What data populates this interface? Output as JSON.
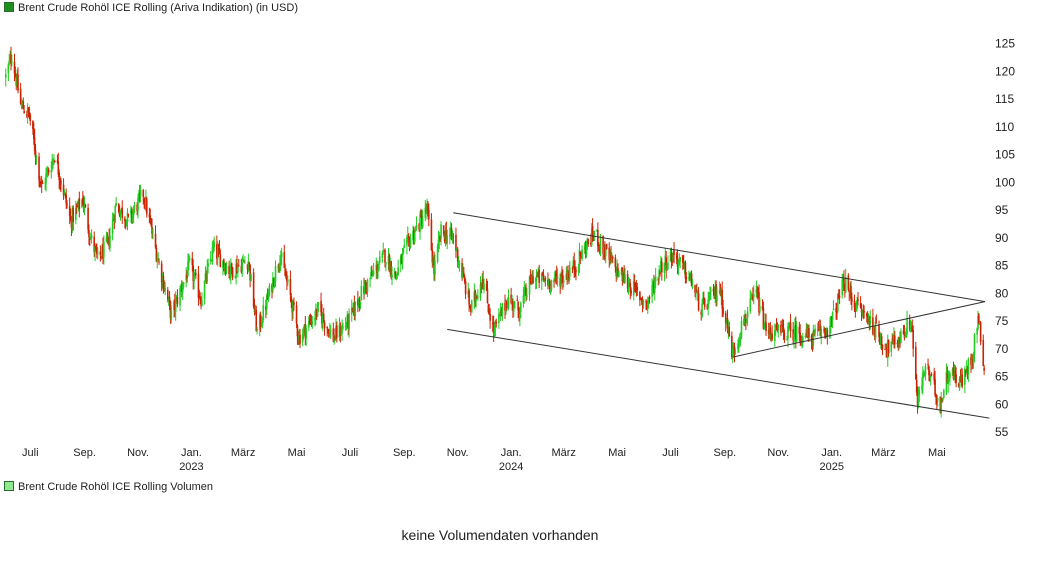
{
  "legend": {
    "price_label": "Brent Crude Rohöl ICE Rolling (Ariva Indikation) (in USD)",
    "volume_label": "Brent Crude Rohöl ICE Rolling Volumen"
  },
  "no_volume_text": "keine Volumendaten vorhanden",
  "colors": {
    "up": "#22cc22",
    "down": "#cc2200",
    "trendline": "#333333",
    "price_legend": "#1f8f1f",
    "volume_legend": "#8ee88e"
  },
  "chart_data": {
    "type": "candlestick",
    "title": "Brent Crude Rohöl ICE Rolling (Ariva Indikation) (in USD)",
    "ylim": [
      53,
      127
    ],
    "y_ticks": [
      55,
      60,
      65,
      70,
      75,
      80,
      85,
      90,
      95,
      100,
      105,
      110,
      115,
      120,
      125
    ],
    "x_range": [
      "2022-06-01",
      "2025-06-25"
    ],
    "x_ticks": [
      {
        "date": "2022-07-01",
        "label": "Juli",
        "year": ""
      },
      {
        "date": "2022-09-01",
        "label": "Sep.",
        "year": ""
      },
      {
        "date": "2022-11-01",
        "label": "Nov.",
        "year": ""
      },
      {
        "date": "2023-01-01",
        "label": "Jan.",
        "year": "2023"
      },
      {
        "date": "2023-03-01",
        "label": "März",
        "year": ""
      },
      {
        "date": "2023-05-01",
        "label": "Mai",
        "year": ""
      },
      {
        "date": "2023-07-01",
        "label": "Juli",
        "year": ""
      },
      {
        "date": "2023-09-01",
        "label": "Sep.",
        "year": ""
      },
      {
        "date": "2023-11-01",
        "label": "Nov.",
        "year": ""
      },
      {
        "date": "2024-01-01",
        "label": "Jan.",
        "year": "2024"
      },
      {
        "date": "2024-03-01",
        "label": "März",
        "year": ""
      },
      {
        "date": "2024-05-01",
        "label": "Mai",
        "year": ""
      },
      {
        "date": "2024-07-01",
        "label": "Juli",
        "year": ""
      },
      {
        "date": "2024-09-01",
        "label": "Sep.",
        "year": ""
      },
      {
        "date": "2024-11-01",
        "label": "Nov.",
        "year": ""
      },
      {
        "date": "2025-01-01",
        "label": "Jan.",
        "year": "2025"
      },
      {
        "date": "2025-03-01",
        "label": "März",
        "year": ""
      },
      {
        "date": "2025-05-01",
        "label": "Mai",
        "year": ""
      }
    ],
    "price_path": [
      [
        "2022-06-03",
        119
      ],
      [
        "2022-06-10",
        123
      ],
      [
        "2022-06-20",
        114
      ],
      [
        "2022-06-30",
        112
      ],
      [
        "2022-07-14",
        99
      ],
      [
        "2022-07-29",
        105
      ],
      [
        "2022-08-16",
        93
      ],
      [
        "2022-08-30",
        97
      ],
      [
        "2022-09-08",
        90
      ],
      [
        "2022-09-16",
        86
      ],
      [
        "2022-09-28",
        89
      ],
      [
        "2022-10-07",
        96
      ],
      [
        "2022-10-21",
        93
      ],
      [
        "2022-11-07",
        98
      ],
      [
        "2022-11-21",
        88
      ],
      [
        "2022-12-09",
        76
      ],
      [
        "2022-12-30",
        85
      ],
      [
        "2023-01-12",
        79
      ],
      [
        "2023-01-26",
        88
      ],
      [
        "2023-02-14",
        84
      ],
      [
        "2023-03-07",
        86
      ],
      [
        "2023-03-17",
        73
      ],
      [
        "2023-03-31",
        80
      ],
      [
        "2023-04-12",
        87
      ],
      [
        "2023-04-26",
        78
      ],
      [
        "2023-05-04",
        72
      ],
      [
        "2023-05-26",
        77
      ],
      [
        "2023-06-12",
        72
      ],
      [
        "2023-06-30",
        75
      ],
      [
        "2023-07-14",
        80
      ],
      [
        "2023-08-10",
        87
      ],
      [
        "2023-08-22",
        83
      ],
      [
        "2023-09-05",
        89
      ],
      [
        "2023-09-27",
        95
      ],
      [
        "2023-10-05",
        84
      ],
      [
        "2023-10-13",
        91
      ],
      [
        "2023-10-27",
        90
      ],
      [
        "2023-11-16",
        77
      ],
      [
        "2023-11-29",
        83
      ],
      [
        "2023-12-12",
        73
      ],
      [
        "2023-12-28",
        79
      ],
      [
        "2024-01-10",
        77
      ],
      [
        "2024-01-26",
        83
      ],
      [
        "2024-02-14",
        82
      ],
      [
        "2024-03-01",
        83
      ],
      [
        "2024-03-14",
        85
      ],
      [
        "2024-04-05",
        91
      ],
      [
        "2024-04-19",
        87
      ],
      [
        "2024-05-01",
        84
      ],
      [
        "2024-05-13",
        82
      ],
      [
        "2024-06-04",
        78
      ],
      [
        "2024-06-20",
        85
      ],
      [
        "2024-07-05",
        87
      ],
      [
        "2024-07-25",
        82
      ],
      [
        "2024-08-05",
        77
      ],
      [
        "2024-08-26",
        81
      ],
      [
        "2024-09-10",
        69
      ],
      [
        "2024-09-20",
        74
      ],
      [
        "2024-10-07",
        80
      ],
      [
        "2024-10-18",
        73
      ],
      [
        "2024-11-01",
        73
      ],
      [
        "2024-11-20",
        73
      ],
      [
        "2024-12-10",
        72
      ],
      [
        "2024-12-30",
        74
      ],
      [
        "2025-01-15",
        82
      ],
      [
        "2025-01-28",
        78
      ],
      [
        "2025-02-14",
        75
      ],
      [
        "2025-03-05",
        70
      ],
      [
        "2025-03-20",
        72
      ],
      [
        "2025-04-02",
        75
      ],
      [
        "2025-04-09",
        60
      ],
      [
        "2025-04-18",
        67
      ],
      [
        "2025-05-05",
        60
      ],
      [
        "2025-05-14",
        66
      ],
      [
        "2025-05-30",
        64
      ],
      [
        "2025-06-11",
        69
      ],
      [
        "2025-06-17",
        76
      ],
      [
        "2025-06-24",
        67
      ]
    ],
    "trendlines": [
      {
        "from": [
          "2023-10-27",
          94.5
        ],
        "to": [
          "2025-06-25",
          78.5
        ]
      },
      {
        "from": [
          "2023-10-20",
          73.5
        ],
        "to": [
          "2025-06-30",
          57.5
        ]
      },
      {
        "from": [
          "2024-09-10",
          68.5
        ],
        "to": [
          "2025-06-25",
          78.5
        ]
      }
    ]
  }
}
